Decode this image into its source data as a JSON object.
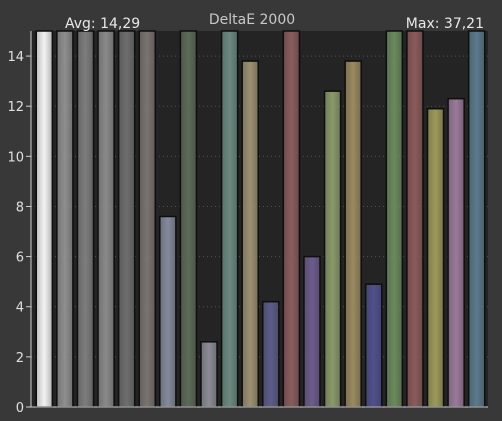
{
  "chart_data": {
    "type": "bar",
    "title": "DeltaE 2000",
    "avg_label": "Avg: 14,29",
    "max_label": "Max: 37,21",
    "xlabel": "",
    "ylabel": "",
    "ylim": [
      0,
      15
    ],
    "yticks": [
      0,
      2,
      4,
      6,
      8,
      10,
      12,
      14
    ],
    "grid": true,
    "bars": [
      {
        "value": 15,
        "color": "#f2f2f2"
      },
      {
        "value": 15,
        "color": "#8f8f8f"
      },
      {
        "value": 15,
        "color": "#7d7d7d"
      },
      {
        "value": 15,
        "color": "#8a8a8a"
      },
      {
        "value": 15,
        "color": "#6e6e6e"
      },
      {
        "value": 15,
        "color": "#7a7470"
      },
      {
        "value": 7.6,
        "color": "#848a9c"
      },
      {
        "value": 15,
        "color": "#5c6a58"
      },
      {
        "value": 2.6,
        "color": "#8c8c96"
      },
      {
        "value": 15,
        "color": "#6a8a80"
      },
      {
        "value": 13.8,
        "color": "#9c9070"
      },
      {
        "value": 4.2,
        "color": "#5c5c8a"
      },
      {
        "value": 15,
        "color": "#8a5c5c"
      },
      {
        "value": 6.0,
        "color": "#6c5c8c"
      },
      {
        "value": 12.6,
        "color": "#8a9a6a"
      },
      {
        "value": 13.8,
        "color": "#9a8a60"
      },
      {
        "value": 4.9,
        "color": "#50508c"
      },
      {
        "value": 15,
        "color": "#6a8a5c"
      },
      {
        "value": 15,
        "color": "#8c5a5a"
      },
      {
        "value": 11.9,
        "color": "#9c9a58"
      },
      {
        "value": 12.3,
        "color": "#9a7a9a"
      },
      {
        "value": 15,
        "color": "#5a7a8c"
      }
    ]
  }
}
